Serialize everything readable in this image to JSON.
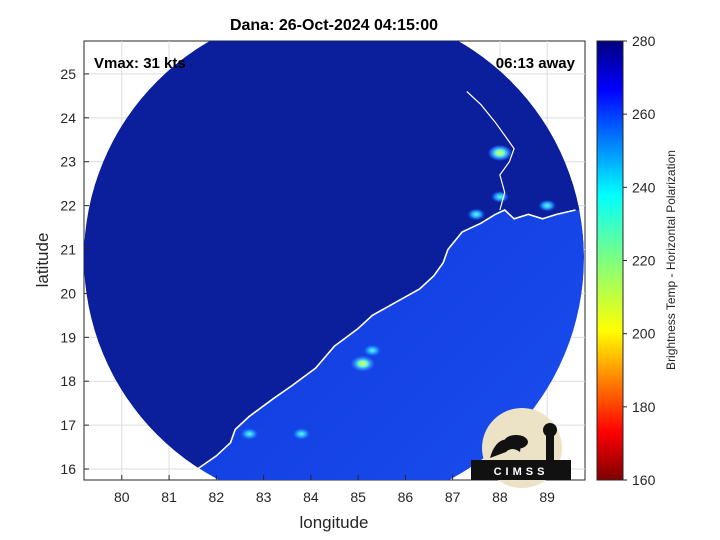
{
  "title": "Dana: 26-Oct-2024 04:15:00",
  "annotations": {
    "vmax": "Vmax: 31 kts",
    "time_away": "06:13 away"
  },
  "axes": {
    "xlabel": "longitude",
    "ylabel": "latitude",
    "xlim": [
      79.2,
      89.8
    ],
    "ylim": [
      15.75,
      25.75
    ],
    "xticks": [
      80,
      81,
      82,
      83,
      84,
      85,
      86,
      87,
      88,
      89
    ],
    "yticks": [
      16,
      17,
      18,
      19,
      20,
      21,
      22,
      23,
      24,
      25
    ],
    "grid": true
  },
  "colorbar": {
    "label": "Brightness Temp - Horizontal Polarization",
    "range": [
      160,
      280
    ],
    "ticks": [
      160,
      180,
      200,
      220,
      240,
      260,
      280
    ],
    "colormap": "jet"
  },
  "logo": {
    "text": "CIMSS"
  },
  "colors": {
    "background_field": "#0a2ab8",
    "land_field": "#0a1a8c",
    "coast": "#ffffff",
    "warm_spot": "#ffe600"
  },
  "chart_data": {
    "type": "heatmap",
    "title": "Dana: 26-Oct-2024 04:15:00",
    "xlabel": "longitude",
    "ylabel": "latitude",
    "xlim": [
      79.2,
      89.8
    ],
    "ylim": [
      15.75,
      25.75
    ],
    "value_range": [
      160,
      280
    ],
    "swath": {
      "center": [
        84.6,
        20.7
      ],
      "radius_deg_lon": 5.3,
      "radius_deg_lat": 5.0
    },
    "highlights": [
      {
        "lon": 85.1,
        "lat": 18.4,
        "tb": 205
      },
      {
        "lon": 85.3,
        "lat": 18.7,
        "tb": 230
      },
      {
        "lon": 88.0,
        "lat": 23.2,
        "tb": 215
      },
      {
        "lon": 87.5,
        "lat": 21.8,
        "tb": 240
      },
      {
        "lon": 82.7,
        "lat": 16.8,
        "tb": 245
      },
      {
        "lon": 83.8,
        "lat": 16.8,
        "tb": 245
      },
      {
        "lon": 88.0,
        "lat": 22.2,
        "tb": 245
      },
      {
        "lon": 89.0,
        "lat": 22.0,
        "tb": 240
      }
    ],
    "coastline": [
      [
        81.2,
        15.9
      ],
      [
        81.6,
        16.0
      ],
      [
        82.0,
        16.3
      ],
      [
        82.3,
        16.6
      ],
      [
        82.4,
        16.9
      ],
      [
        82.7,
        17.2
      ],
      [
        83.2,
        17.6
      ],
      [
        83.6,
        17.9
      ],
      [
        84.1,
        18.3
      ],
      [
        84.5,
        18.8
      ],
      [
        85.0,
        19.2
      ],
      [
        85.3,
        19.5
      ],
      [
        85.8,
        19.8
      ],
      [
        86.3,
        20.1
      ],
      [
        86.6,
        20.4
      ],
      [
        86.8,
        20.7
      ],
      [
        86.9,
        21.0
      ],
      [
        87.2,
        21.4
      ],
      [
        87.6,
        21.6
      ],
      [
        87.9,
        21.8
      ],
      [
        88.1,
        21.9
      ],
      [
        88.3,
        21.7
      ],
      [
        88.6,
        21.8
      ],
      [
        88.9,
        21.7
      ],
      [
        89.2,
        21.8
      ],
      [
        89.6,
        21.9
      ]
    ],
    "river_coast": [
      [
        88.0,
        21.9
      ],
      [
        88.1,
        22.3
      ],
      [
        88.0,
        22.7
      ],
      [
        88.2,
        23.0
      ],
      [
        88.3,
        23.3
      ],
      [
        88.1,
        23.6
      ],
      [
        87.9,
        23.9
      ],
      [
        87.6,
        24.3
      ],
      [
        87.3,
        24.6
      ]
    ]
  }
}
